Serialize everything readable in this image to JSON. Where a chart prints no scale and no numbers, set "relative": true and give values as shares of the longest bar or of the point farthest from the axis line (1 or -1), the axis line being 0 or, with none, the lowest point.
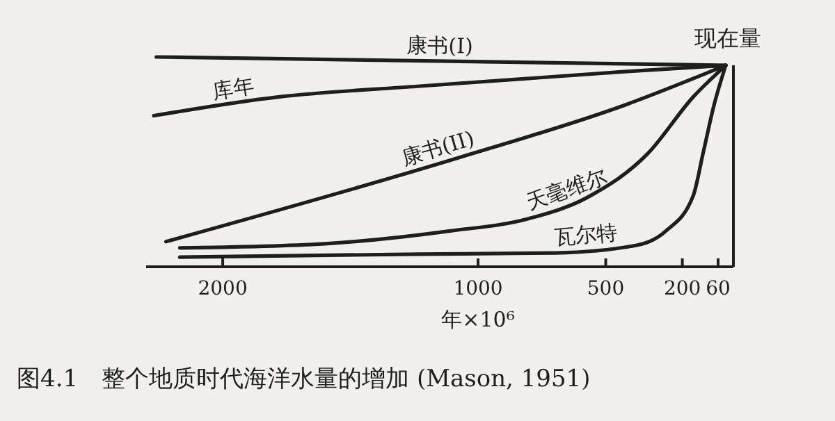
{
  "chart_data": {
    "type": "line",
    "title": "图4.1　整个地质时代海洋水量的增加 (Mason, 1951)",
    "xlabel": "年×10⁶",
    "relative": true,
    "xlim": [
      2300,
      0
    ],
    "xticks": [
      2000,
      1000,
      500,
      200,
      60
    ],
    "grid": false,
    "legend": false,
    "marker": "none",
    "line_style": "solid",
    "annotations": [
      "现在量"
    ],
    "series": [
      {
        "name": "康书(I)",
        "color": "#1e1e1e",
        "x": [
          2260,
          30
        ],
        "values": [
          1.0,
          0.96
        ]
      },
      {
        "name": "库年",
        "color": "#1e1e1e",
        "x": [
          2270,
          1778,
          1238,
          427,
          30
        ],
        "values": [
          0.72,
          0.81,
          0.86,
          0.93,
          0.96
        ]
      },
      {
        "name": "康书(II)",
        "color": "#1e1e1e",
        "x": [
          2222,
          1076,
          427,
          30
        ],
        "values": [
          0.12,
          0.52,
          0.77,
          0.96
        ]
      },
      {
        "name": "天毫维尔",
        "color": "#1e1e1e",
        "x": [
          2168,
          1600,
          1114,
          800,
          573,
          335,
          157,
          30
        ],
        "values": [
          0.09,
          0.11,
          0.17,
          0.23,
          0.33,
          0.54,
          0.81,
          0.96
        ]
      },
      {
        "name": "瓦尔特",
        "color": "#1e1e1e",
        "x": [
          2168,
          1238,
          697,
          389,
          265,
          157,
          119,
          76,
          30
        ],
        "values": [
          0.046,
          0.06,
          0.066,
          0.1,
          0.17,
          0.34,
          0.54,
          0.77,
          0.96
        ]
      }
    ]
  }
}
